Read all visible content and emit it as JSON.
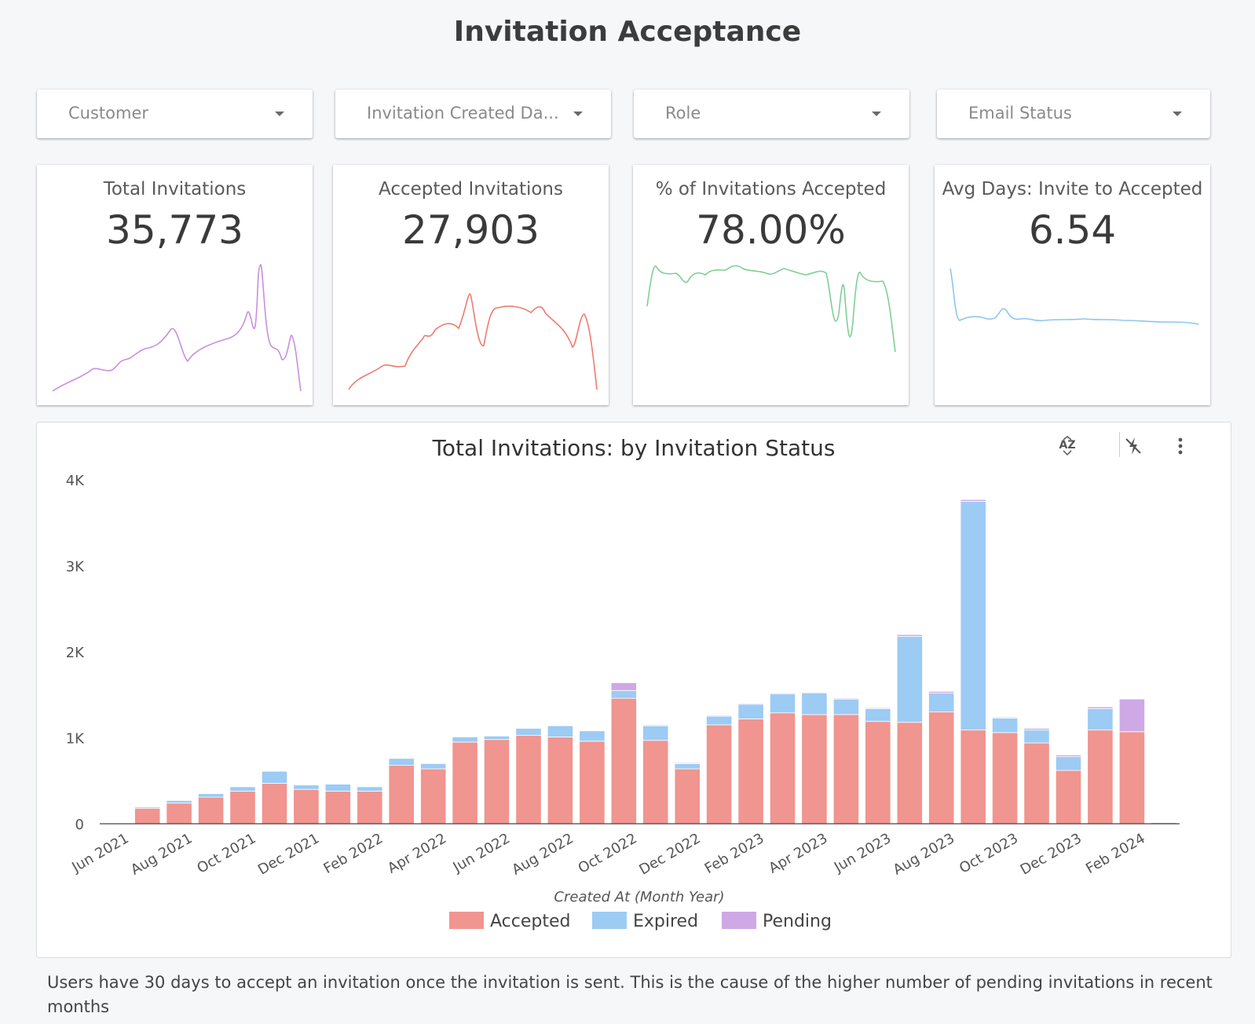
{
  "page": {
    "title": "Invitation Acceptance"
  },
  "filters": [
    {
      "label": "Customer"
    },
    {
      "label": "Invitation Created Da..."
    },
    {
      "label": "Role"
    },
    {
      "label": "Email Status"
    }
  ],
  "scorecards": [
    {
      "label": "Total Invitations",
      "value": "35,773",
      "color": "#c98fdc"
    },
    {
      "label": "Accepted Invitations",
      "value": "27,903",
      "color": "#ee7b6e"
    },
    {
      "label": "% of Invitations Accepted",
      "value": "78.00%",
      "color": "#7fcf94"
    },
    {
      "label": "Avg Days: Invite to Accepted",
      "value": "6.54",
      "color": "#8ec6ee"
    }
  ],
  "chart_toolbar": {
    "sort_icon": "sort-az-icon",
    "cross_filter_icon": "cross-filter-icon",
    "more_icon": "more-vert-icon"
  },
  "note": "Users have 30 days to accept an invitation once the invitation is sent. This is the cause of the higher number of pending invitations in recent months",
  "chart_data": {
    "type": "bar",
    "stacked": true,
    "title": "Total Invitations: by Invitation Status",
    "xlabel": "Created At (Month Year)",
    "ylabel": "",
    "ylim": [
      0,
      4000
    ],
    "yticks": [
      {
        "v": 0,
        "label": "0"
      },
      {
        "v": 1000,
        "label": "1K"
      },
      {
        "v": 2000,
        "label": "2K"
      },
      {
        "v": 3000,
        "label": "3K"
      },
      {
        "v": 4000,
        "label": "4K"
      }
    ],
    "legend": "bottom",
    "categories": [
      "Jun 2021",
      "Jul 2021",
      "Aug 2021",
      "Sep 2021",
      "Oct 2021",
      "Nov 2021",
      "Dec 2021",
      "Jan 2022",
      "Feb 2022",
      "Mar 2022",
      "Apr 2022",
      "May 2022",
      "Jun 2022",
      "Jul 2022",
      "Aug 2022",
      "Sep 2022",
      "Oct 2022",
      "Nov 2022",
      "Dec 2022",
      "Jan 2023",
      "Feb 2023",
      "Mar 2023",
      "Apr 2023",
      "May 2023",
      "Jun 2023",
      "Jul 2023",
      "Aug 2023",
      "Sep 2023",
      "Oct 2023",
      "Nov 2023",
      "Dec 2023",
      "Jan 2024",
      "Feb 2024",
      "Mar 2024"
    ],
    "tick_labels": [
      "Jun 2021",
      "",
      "Aug 2021",
      "",
      "Oct 2021",
      "",
      "Dec 2021",
      "",
      "Feb 2022",
      "",
      "Apr 2022",
      "",
      "Jun 2022",
      "",
      "Aug 2022",
      "",
      "Oct 2022",
      "",
      "Dec 2022",
      "",
      "Feb 2023",
      "",
      "Apr 2023",
      "",
      "Jun 2023",
      "",
      "Aug 2023",
      "",
      "Oct 2023",
      "",
      "Dec 2023",
      "",
      "Feb 2024",
      ""
    ],
    "series": [
      {
        "name": "Accepted",
        "color": "#f0958f",
        "values": [
          10,
          180,
          240,
          310,
          380,
          470,
          400,
          380,
          380,
          680,
          640,
          950,
          980,
          1030,
          1010,
          960,
          1460,
          970,
          640,
          1150,
          1220,
          1290,
          1270,
          1270,
          1190,
          1180,
          1300,
          1090,
          1060,
          940,
          620,
          1090,
          1070,
          15
        ]
      },
      {
        "name": "Expired",
        "color": "#9ccbf4",
        "values": [
          5,
          15,
          30,
          40,
          50,
          140,
          50,
          80,
          50,
          80,
          60,
          60,
          40,
          80,
          130,
          120,
          90,
          170,
          60,
          100,
          170,
          220,
          250,
          180,
          150,
          1000,
          220,
          2660,
          170,
          150,
          160,
          250,
          0,
          5
        ]
      },
      {
        "name": "Pending",
        "color": "#cfa8e6",
        "values": [
          0,
          0,
          0,
          0,
          0,
          0,
          0,
          0,
          0,
          0,
          0,
          0,
          0,
          0,
          0,
          0,
          90,
          10,
          10,
          10,
          10,
          10,
          10,
          10,
          10,
          20,
          20,
          20,
          10,
          20,
          20,
          20,
          380,
          5
        ]
      }
    ]
  }
}
